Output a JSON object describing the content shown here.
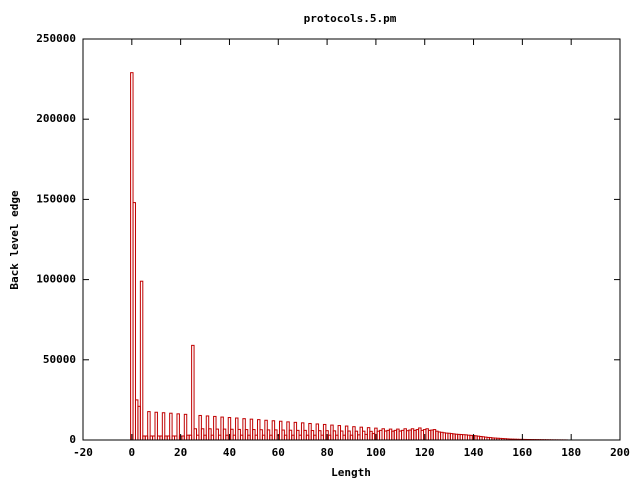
{
  "chart_data": {
    "type": "bar",
    "title": "protocols.5.pm",
    "xlabel": "Length",
    "ylabel": "Back level edge",
    "color": "#c00000",
    "xlim": [
      -20,
      200
    ],
    "xticks": [
      -20,
      0,
      20,
      40,
      60,
      80,
      100,
      120,
      140,
      160,
      180,
      200
    ],
    "ylim": [
      0,
      250000
    ],
    "yticks": [
      0,
      50000,
      100000,
      150000,
      200000,
      250000
    ],
    "x": [
      0,
      1,
      2,
      3,
      4,
      5,
      6,
      7,
      8,
      9,
      10,
      11,
      12,
      13,
      14,
      15,
      16,
      17,
      18,
      19,
      20,
      21,
      22,
      23,
      24,
      25,
      26,
      27,
      28,
      29,
      30,
      31,
      32,
      33,
      34,
      35,
      36,
      37,
      38,
      39,
      40,
      41,
      42,
      43,
      44,
      45,
      46,
      47,
      48,
      49,
      50,
      51,
      52,
      53,
      54,
      55,
      56,
      57,
      58,
      59,
      60,
      61,
      62,
      63,
      64,
      65,
      66,
      67,
      68,
      69,
      70,
      71,
      72,
      73,
      74,
      75,
      76,
      77,
      78,
      79,
      80,
      81,
      82,
      83,
      84,
      85,
      86,
      87,
      88,
      89,
      90,
      91,
      92,
      93,
      94,
      95,
      96,
      97,
      98,
      99,
      100,
      101,
      102,
      103,
      104,
      105,
      106,
      107,
      108,
      109,
      110,
      111,
      112,
      113,
      114,
      115,
      116,
      117,
      118,
      119,
      120,
      121,
      122,
      123,
      124,
      125,
      126,
      127,
      128,
      129,
      130,
      131,
      132,
      133,
      134,
      135,
      136,
      137,
      138,
      139,
      140,
      141,
      142,
      143,
      144,
      145,
      146,
      147,
      148,
      149,
      150,
      151,
      152,
      153,
      154,
      155,
      156,
      157,
      158,
      159,
      160,
      161,
      162,
      163,
      164,
      165,
      166,
      167,
      168,
      169,
      170,
      171,
      172,
      173,
      174,
      175,
      176,
      177,
      178
    ],
    "values": [
      229000,
      148000,
      25000,
      21000,
      99000,
      2500,
      2500,
      17700,
      2500,
      2500,
      17300,
      2500,
      2500,
      17000,
      2500,
      2500,
      16700,
      2500,
      2500,
      16300,
      2500,
      2500,
      16000,
      3000,
      3000,
      59000,
      7000,
      3000,
      15300,
      7000,
      3000,
      15000,
      7000,
      3000,
      14700,
      6800,
      3000,
      14300,
      6800,
      3000,
      14000,
      6700,
      3000,
      13700,
      6600,
      3000,
      13300,
      6500,
      3000,
      13000,
      6500,
      3000,
      12700,
      6400,
      3000,
      12300,
      6300,
      3000,
      12000,
      6300,
      3000,
      11700,
      6200,
      3000,
      11300,
      6100,
      3000,
      11000,
      6000,
      3000,
      10700,
      6000,
      3000,
      10300,
      5900,
      3000,
      10000,
      5800,
      3000,
      9700,
      5800,
      3000,
      9300,
      5700,
      3000,
      9000,
      5600,
      3000,
      8700,
      5600,
      3000,
      8300,
      5500,
      3200,
      8000,
      5500,
      3500,
      7700,
      5400,
      4000,
      7400,
      5500,
      6000,
      7000,
      5600,
      6000,
      6800,
      5500,
      6000,
      6800,
      5600,
      6000,
      7000,
      5800,
      6200,
      7000,
      6000,
      6500,
      7500,
      6000,
      6500,
      7000,
      6000,
      6200,
      6500,
      5500,
      5000,
      4800,
      4500,
      4300,
      4200,
      4000,
      3800,
      3600,
      3500,
      3400,
      3300,
      3200,
      3000,
      2900,
      2800,
      2600,
      2400,
      2200,
      2000,
      1800,
      1600,
      1500,
      1300,
      1200,
      1100,
      1000,
      900,
      800,
      700,
      600,
      550,
      500,
      450,
      400,
      380,
      350,
      320,
      300,
      280,
      260,
      240,
      220,
      200,
      180,
      160,
      140,
      120,
      100,
      90,
      80,
      70,
      60,
      50
    ]
  }
}
